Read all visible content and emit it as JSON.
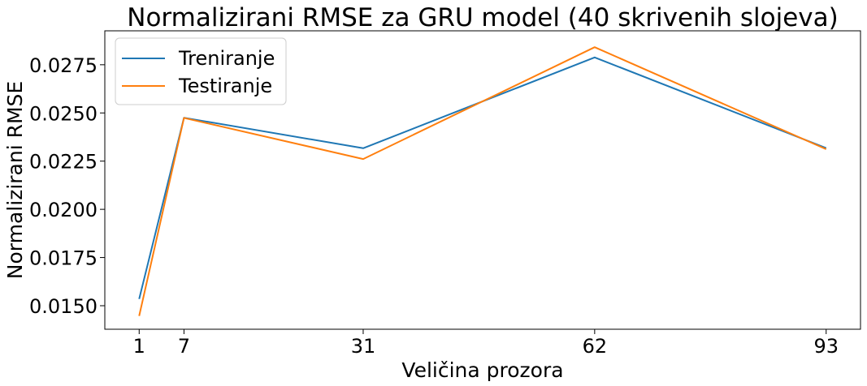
{
  "chart_data": {
    "type": "line",
    "title": "Normalizirani RMSE za GRU model (40 skrivenih slojeva)",
    "xlabel": "Veličina prozora",
    "ylabel": "Normalizirani RMSE",
    "x": [
      1,
      7,
      31,
      62,
      93
    ],
    "xticks": [
      "1",
      "7",
      "31",
      "62",
      "93"
    ],
    "yticks": [
      "0.0150",
      "0.0175",
      "0.0200",
      "0.0225",
      "0.0250",
      "0.0275"
    ],
    "xlim": [
      -3.6,
      97.6
    ],
    "ylim": [
      0.01378,
      0.02926
    ],
    "grid": false,
    "legend_position": "top-left",
    "series": [
      {
        "name": "Treniranje",
        "color": "#1f77b4",
        "values": [
          0.01535,
          0.02475,
          0.02317,
          0.02788,
          0.02318
        ]
      },
      {
        "name": "Testiranje",
        "color": "#ff7f0e",
        "values": [
          0.01447,
          0.02474,
          0.02261,
          0.02841,
          0.02312
        ]
      }
    ]
  }
}
